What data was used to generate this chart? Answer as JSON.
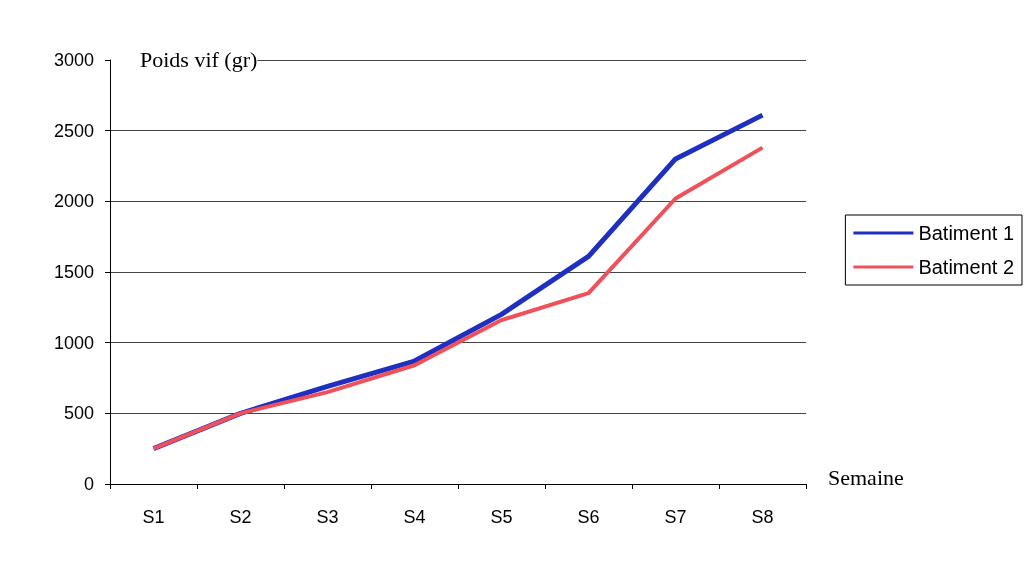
{
  "chart_data": {
    "type": "line",
    "xlabel": "Semaine",
    "ylabel": "Poids vif (gr)",
    "categories": [
      "S1",
      "S2",
      "S3",
      "S4",
      "S5",
      "S6",
      "S7",
      "S8"
    ],
    "series": [
      {
        "name": "Batiment 1",
        "color": "#1f2fbf",
        "values": [
          250,
          500,
          690,
          870,
          1200,
          1610,
          2300,
          2610
        ]
      },
      {
        "name": "Batiment 2",
        "color": "#f0505a",
        "values": [
          250,
          500,
          650,
          840,
          1160,
          1350,
          2020,
          2380
        ]
      }
    ],
    "ylim": [
      0,
      3000
    ],
    "yticks": [
      0,
      500,
      1000,
      1500,
      2000,
      2500,
      3000
    ],
    "grid": "y",
    "legend": "right",
    "marker": "none",
    "line_style": "solid"
  }
}
